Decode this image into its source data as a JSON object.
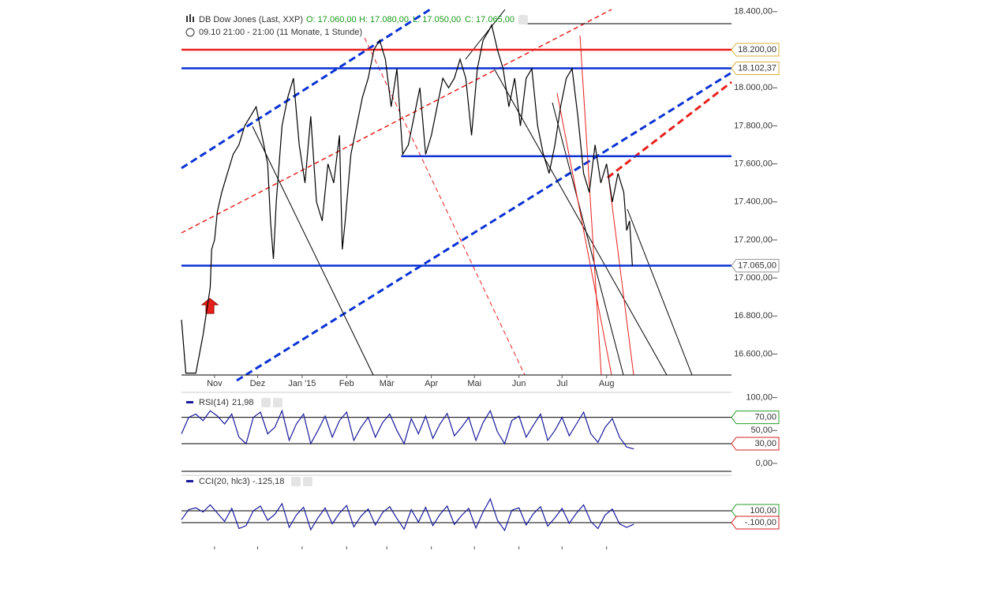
{
  "chart_data": [
    {
      "type": "line",
      "title": "DB Dow Jones (Last, XXP)",
      "ohlc": [
        "O: 17.060,00",
        "H: 17.080,00",
        "L: 17.050,00",
        "C: 17.065,00"
      ],
      "subtitle": "09.10 21:00 - 21:00 (11 Monate, 1 Stunde)",
      "xlim": [
        0,
        383
      ],
      "ylim": [
        16490,
        18420
      ],
      "xticks": [
        {
          "value": 23,
          "label": "Nov"
        },
        {
          "value": 53,
          "label": "Dez"
        },
        {
          "value": 84,
          "label": "Jan '15"
        },
        {
          "value": 115,
          "label": "Feb"
        },
        {
          "value": 143,
          "label": "Mär"
        },
        {
          "value": 174,
          "label": "Apr"
        },
        {
          "value": 204,
          "label": "Mai"
        },
        {
          "value": 235,
          "label": "Jun"
        },
        {
          "value": 265,
          "label": "Jul"
        },
        {
          "value": 296,
          "label": "Aug"
        }
      ],
      "yticks": [
        {
          "value": 16600,
          "label": "16.600,00"
        },
        {
          "value": 16800,
          "label": "16.800,00"
        },
        {
          "value": 17000,
          "label": "17.000,00"
        },
        {
          "value": 17200,
          "label": "17.200,00"
        },
        {
          "value": 17400,
          "label": "17.400,00"
        },
        {
          "value": 17600,
          "label": "17.600,00"
        },
        {
          "value": 17800,
          "label": "17.800,00"
        },
        {
          "value": 18000,
          "label": "18.000,00"
        },
        {
          "value": 18400,
          "label": "18.400,00"
        }
      ],
      "levels": [
        {
          "value": 18200,
          "label": "18.200,00",
          "color": "#e8201c"
        },
        {
          "value": 18102.37,
          "label": "18.102,37",
          "color": "#0a32d4"
        },
        {
          "value": 17065,
          "label": "17.065,00",
          "color": "#0a32d4"
        },
        {
          "value": 17640,
          "color": "#0a32d4",
          "x_from": 153
        }
      ],
      "series": [
        {
          "color": "#000000",
          "x": [
            0,
            3,
            10,
            15,
            20,
            21,
            23,
            25,
            28,
            32,
            36,
            40,
            44,
            48,
            52,
            56,
            60,
            62,
            64,
            66,
            70,
            74,
            78,
            82,
            86,
            90,
            94,
            98,
            102,
            106,
            110,
            112,
            114,
            118,
            122,
            126,
            130,
            134,
            138,
            142,
            146,
            150,
            154,
            158,
            162,
            166,
            170,
            174,
            178,
            182,
            186,
            190,
            194,
            198,
            202,
            206,
            210,
            214,
            216,
            220,
            224,
            228,
            232,
            236,
            240,
            244,
            248,
            252,
            256,
            260,
            264,
            268,
            272,
            276,
            280,
            284,
            288,
            292,
            296,
            300,
            304,
            308,
            310,
            312,
            314
          ],
          "values": [
            16780,
            16500,
            16500,
            16700,
            16950,
            17150,
            17200,
            17350,
            17450,
            17550,
            17650,
            17700,
            17800,
            17850,
            17900,
            17750,
            17600,
            17300,
            17100,
            17400,
            17800,
            17950,
            18050,
            17700,
            17500,
            17850,
            17400,
            17300,
            17600,
            17500,
            17750,
            17150,
            17300,
            17650,
            17800,
            17950,
            18050,
            18200,
            18250,
            18150,
            17900,
            18100,
            17650,
            17700,
            17850,
            18000,
            17650,
            17750,
            17900,
            18050,
            18000,
            18050,
            18150,
            18050,
            17750,
            18100,
            18250,
            18300,
            18330,
            18200,
            18100,
            17900,
            18050,
            17800,
            18050,
            18100,
            17800,
            17650,
            17550,
            17700,
            17900,
            18050,
            18100,
            17850,
            17550,
            17450,
            17700,
            17500,
            17600,
            17400,
            17550,
            17450,
            17250,
            17300,
            17065
          ]
        }
      ]
    },
    {
      "type": "line",
      "title": "RSI(14)",
      "last_label": "21,98",
      "xlim": [
        0,
        383
      ],
      "ylim": [
        -12,
        108
      ],
      "yticks": [
        {
          "value": 0,
          "label": "0,00"
        },
        {
          "value": 50,
          "label": "50,00"
        },
        {
          "value": 100,
          "label": "100,00"
        }
      ],
      "levels": [
        {
          "value": 70,
          "label": "70,00",
          "color": "#2a9d2a"
        },
        {
          "value": 30,
          "label": "30,00",
          "color": "#d42020"
        }
      ],
      "series": [
        {
          "color": "#1a1a9c",
          "x": [
            0,
            5,
            10,
            15,
            20,
            25,
            30,
            35,
            40,
            45,
            50,
            55,
            60,
            65,
            70,
            75,
            80,
            85,
            90,
            95,
            100,
            105,
            110,
            115,
            120,
            125,
            130,
            135,
            140,
            145,
            150,
            155,
            160,
            165,
            170,
            175,
            180,
            185,
            190,
            195,
            200,
            205,
            210,
            215,
            220,
            225,
            230,
            235,
            240,
            245,
            250,
            255,
            260,
            265,
            270,
            275,
            280,
            285,
            290,
            295,
            300,
            305,
            310,
            315
          ],
          "values": [
            45,
            70,
            75,
            65,
            80,
            72,
            60,
            75,
            40,
            30,
            70,
            78,
            45,
            55,
            80,
            35,
            60,
            75,
            30,
            50,
            72,
            40,
            65,
            78,
            35,
            55,
            70,
            40,
            62,
            75,
            50,
            30,
            68,
            45,
            72,
            38,
            60,
            76,
            42,
            55,
            70,
            35,
            62,
            80,
            48,
            30,
            65,
            72,
            40,
            58,
            75,
            35,
            50,
            70,
            42,
            60,
            78,
            45,
            32,
            55,
            68,
            40,
            25,
            22
          ]
        }
      ]
    },
    {
      "type": "line",
      "title": "CCI(20, hlc3)",
      "last_label": "-.125,18",
      "xlim": [
        0,
        383
      ],
      "ylim": [
        -473,
        567
      ],
      "levels": [
        {
          "value": 100,
          "label": "100,00",
          "color": "#2a9d2a"
        },
        {
          "value": -100,
          "label": "-.100,00",
          "color": "#d42020"
        }
      ],
      "series": [
        {
          "color": "#1a1a9c",
          "x": [
            0,
            5,
            10,
            15,
            20,
            25,
            30,
            35,
            40,
            45,
            50,
            55,
            60,
            65,
            70,
            75,
            80,
            85,
            90,
            95,
            100,
            105,
            110,
            115,
            120,
            125,
            130,
            135,
            140,
            145,
            150,
            155,
            160,
            165,
            170,
            175,
            180,
            185,
            190,
            195,
            200,
            205,
            210,
            215,
            220,
            225,
            230,
            235,
            240,
            245,
            250,
            255,
            260,
            265,
            270,
            275,
            280,
            285,
            290,
            295,
            300,
            305,
            310,
            315
          ],
          "values": [
            -50,
            120,
            150,
            80,
            200,
            60,
            -80,
            140,
            -200,
            -150,
            100,
            180,
            -60,
            40,
            220,
            -180,
            30,
            160,
            -220,
            -20,
            150,
            -120,
            60,
            190,
            -170,
            10,
            130,
            -140,
            70,
            170,
            -30,
            -210,
            120,
            -90,
            160,
            -150,
            40,
            180,
            -130,
            20,
            140,
            -190,
            80,
            300,
            -60,
            -230,
            110,
            150,
            -140,
            50,
            170,
            -160,
            -20,
            140,
            -110,
            60,
            200,
            -80,
            -200,
            30,
            130,
            -120,
            -180,
            -125
          ]
        }
      ]
    }
  ]
}
